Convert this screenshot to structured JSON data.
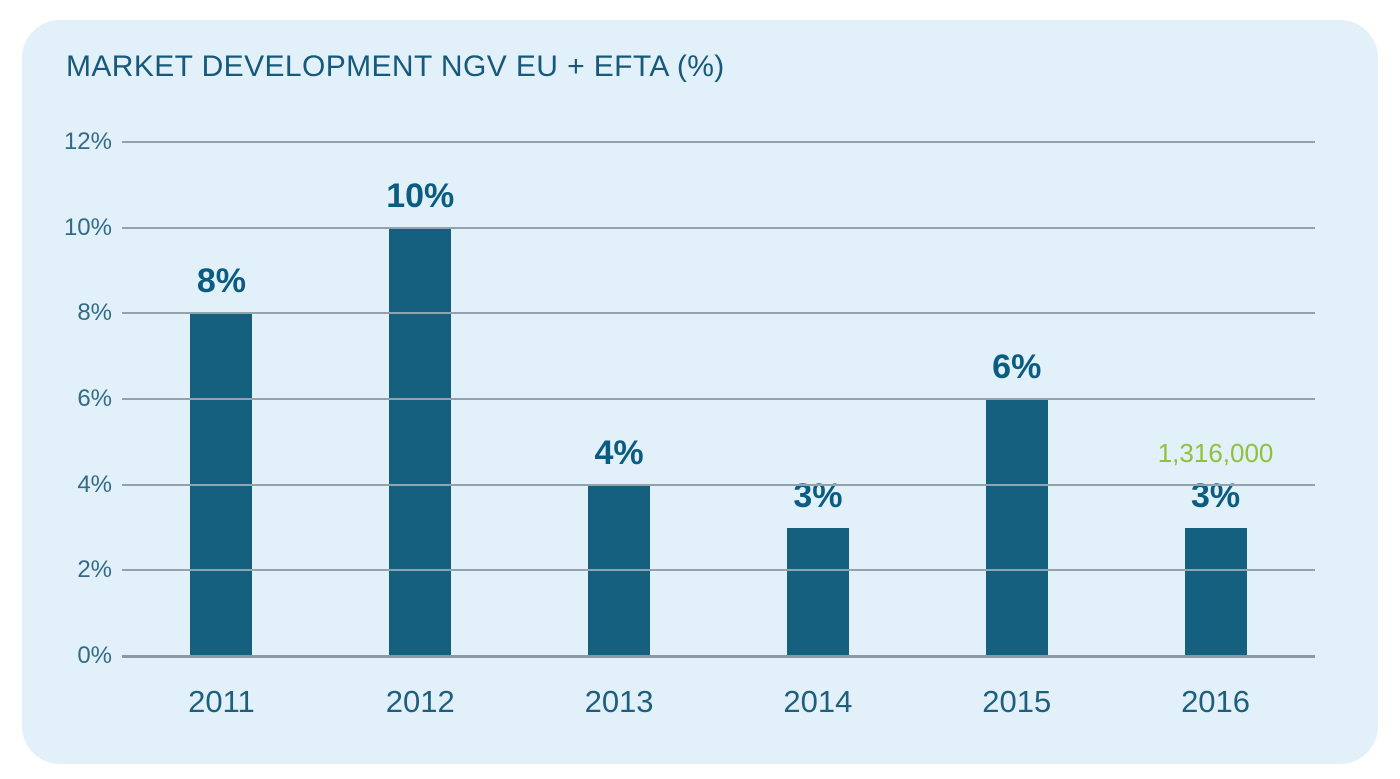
{
  "header": {
    "title": "MARKET DEVELOPMENT NGV EU + EFTA (%)"
  },
  "colors": {
    "page_background": "#ffffff",
    "card_background": "#e2f0fa",
    "title_text": "#16597b",
    "bar_fill": "#14607e",
    "value_label_text": "#0a5c80",
    "annotation_text": "#8fc13e",
    "tick_label_text": "#336b87",
    "year_label_text": "#1e5f7e",
    "gridline": "#94a2ad"
  },
  "chart_data": {
    "type": "bar",
    "title": "MARKET DEVELOPMENT NGV EU + EFTA (%)",
    "categories": [
      "2011",
      "2012",
      "2013",
      "2014",
      "2015",
      "2016"
    ],
    "values": [
      8,
      10,
      4,
      3,
      6,
      3
    ],
    "bar_labels": [
      "8%",
      "10%",
      "4%",
      "3%",
      "6%",
      "3%"
    ],
    "annotations": [
      null,
      null,
      null,
      null,
      null,
      "1,316,000"
    ],
    "xlabel": "",
    "ylabel": "",
    "ylim": [
      0,
      12
    ],
    "yticks": [
      0,
      2,
      4,
      6,
      8,
      10,
      12
    ],
    "ytick_labels": [
      "0%",
      "2%",
      "4%",
      "6%",
      "8%",
      "10%",
      "12%"
    ],
    "grid": true,
    "legend": false,
    "bar_color": "#14607e",
    "annotation_color": "#8fc13e"
  }
}
